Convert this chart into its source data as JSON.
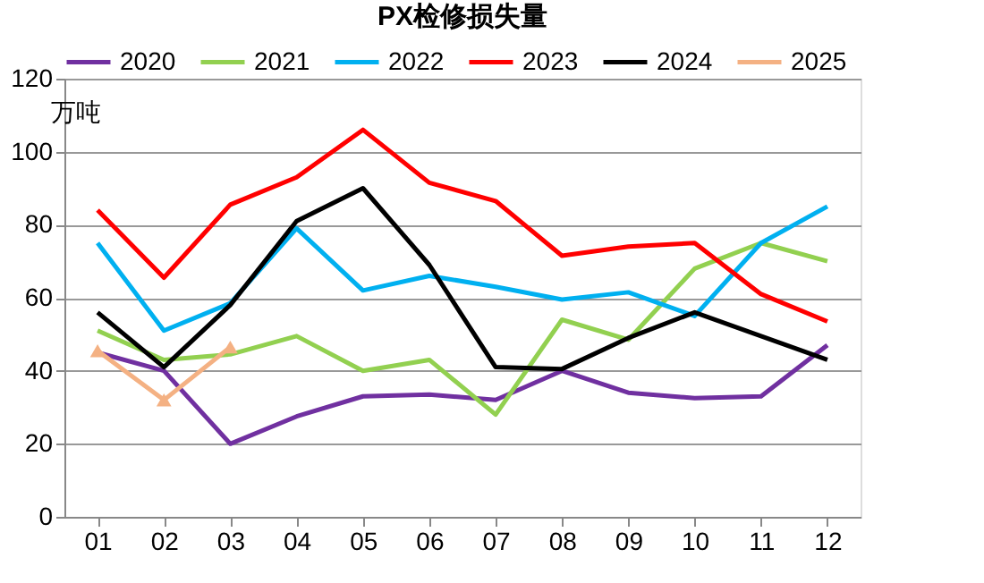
{
  "chart_data": {
    "type": "line",
    "title": "PX检修损失量",
    "ylabel": "万吨",
    "categories": [
      "01",
      "02",
      "03",
      "04",
      "05",
      "06",
      "07",
      "08",
      "09",
      "10",
      "11",
      "12"
    ],
    "ylim": [
      0,
      120
    ],
    "yticks": [
      0,
      20,
      40,
      60,
      80,
      100,
      120
    ],
    "grid": "y",
    "legend": "top",
    "marker": "none",
    "line_style": "solid",
    "series": [
      {
        "name": "2020",
        "color": "#7030a0",
        "values": [
          45,
          40,
          20,
          27.5,
          33,
          33.5,
          32,
          40,
          34,
          32.5,
          33,
          47
        ]
      },
      {
        "name": "2021",
        "color": "#92d050",
        "values": [
          51,
          43,
          44.5,
          49.5,
          40,
          43,
          28,
          54,
          48.5,
          68,
          75,
          70
        ]
      },
      {
        "name": "2022",
        "color": "#00b0f0",
        "values": [
          75,
          51,
          58.5,
          79,
          62,
          66,
          63,
          59.5,
          61.5,
          55,
          75,
          85
        ]
      },
      {
        "name": "2023",
        "color": "#ff0000",
        "values": [
          84,
          65.5,
          85.5,
          93,
          106,
          91.5,
          86.5,
          71.5,
          74,
          75,
          61,
          53.5
        ]
      },
      {
        "name": "2024",
        "color": "#000000",
        "values": [
          56,
          41,
          58,
          81,
          90,
          69,
          41,
          40.5,
          49,
          56,
          49.5,
          43
        ]
      },
      {
        "name": "2025",
        "color": "#f4b183",
        "marker": "triangle",
        "values": [
          45.5,
          32,
          46.5,
          null,
          null,
          null,
          null,
          null,
          null,
          null,
          null,
          null
        ]
      }
    ]
  }
}
